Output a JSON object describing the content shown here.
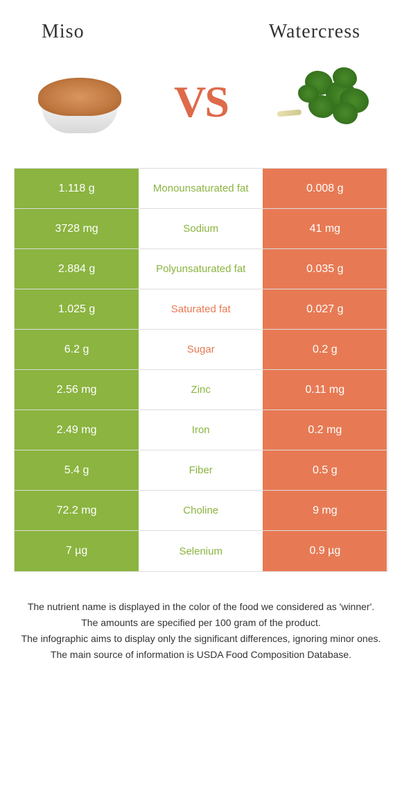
{
  "header": {
    "left": "Miso",
    "right": "Watercress"
  },
  "vs": "VS",
  "colors": {
    "left_bg": "#8bb440",
    "right_bg": "#e77a54",
    "label_left_color": "#8bb440",
    "label_right_color": "#e77a54"
  },
  "rows": [
    {
      "left": "1.118 g",
      "label": "Monounsaturated fat",
      "right": "0.008 g",
      "winner": "left"
    },
    {
      "left": "3728 mg",
      "label": "Sodium",
      "right": "41 mg",
      "winner": "left"
    },
    {
      "left": "2.884 g",
      "label": "Polyunsaturated fat",
      "right": "0.035 g",
      "winner": "left"
    },
    {
      "left": "1.025 g",
      "label": "Saturated fat",
      "right": "0.027 g",
      "winner": "right"
    },
    {
      "left": "6.2 g",
      "label": "Sugar",
      "right": "0.2 g",
      "winner": "right"
    },
    {
      "left": "2.56 mg",
      "label": "Zinc",
      "right": "0.11 mg",
      "winner": "left"
    },
    {
      "left": "2.49 mg",
      "label": "Iron",
      "right": "0.2 mg",
      "winner": "left"
    },
    {
      "left": "5.4 g",
      "label": "Fiber",
      "right": "0.5 g",
      "winner": "left"
    },
    {
      "left": "72.2 mg",
      "label": "Choline",
      "right": "9 mg",
      "winner": "left"
    },
    {
      "left": "7 µg",
      "label": "Selenium",
      "right": "0.9 µg",
      "winner": "left"
    }
  ],
  "footer": {
    "line1": "The nutrient name is displayed in the color of the food we considered as 'winner'.",
    "line2": "The amounts are specified per 100 gram of the product.",
    "line3": "The infographic aims to display only the significant differences, ignoring minor ones.",
    "line4": "The main source of information is USDA Food Composition Database."
  }
}
